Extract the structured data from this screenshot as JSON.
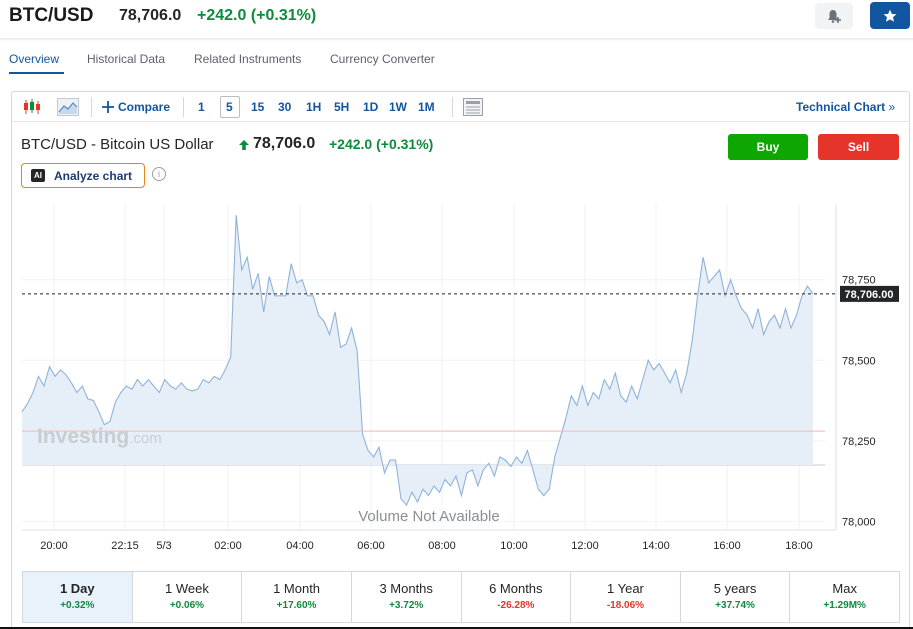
{
  "header": {
    "symbol": "BTC/USD",
    "price": "78,706.0",
    "change": "+242.0",
    "change_pct": "(+0.31%)"
  },
  "nav": {
    "tabs": [
      "Overview",
      "Historical Data",
      "Related Instruments",
      "Currency Converter"
    ],
    "active": "Overview"
  },
  "toolbar": {
    "compare_label": "Compare",
    "intervals": [
      "1",
      "5",
      "15",
      "30",
      "1H",
      "5H",
      "1D",
      "1W",
      "1M"
    ],
    "active_interval": "5",
    "technical_label": "Technical Chart",
    "technical_arrow": "»",
    "icons": [
      "candlestick-icon",
      "area-chart-icon",
      "plus-icon",
      "table-icon"
    ]
  },
  "chart_header": {
    "title": "BTC/USD - Bitcoin US Dollar",
    "price": "78,706.0",
    "change": "+242.0",
    "change_pct": "(+0.31%)",
    "buy_label": "Buy",
    "sell_label": "Sell",
    "analyze_badge": "AI",
    "analyze_label": "Analyze chart",
    "info_glyph": "i"
  },
  "chart_data": {
    "type": "area",
    "x_tick_labels": [
      "20:00",
      "22:15",
      "5/3",
      "02:00",
      "04:00",
      "06:00",
      "08:00",
      "10:00",
      "12:00",
      "14:00",
      "16:00",
      "18:00"
    ],
    "y_tick_labels": [
      "78,750",
      "78,500",
      "78,250",
      "78,000"
    ],
    "ylim": [
      77970,
      78985
    ],
    "current_price_label": "78,706.00",
    "current_price": 78706,
    "reference_price": 78280,
    "watermark": "Investing.com",
    "volume_note": "Volume Not Available",
    "series": [
      {
        "values": [
          78340,
          78365,
          78400,
          78450,
          78420,
          78480,
          78450,
          78470,
          78455,
          78430,
          78400,
          78420,
          78380,
          78375,
          78340,
          78300,
          78310,
          78370,
          78400,
          78420,
          78410,
          78440,
          78420,
          78440,
          78420,
          78400,
          78440,
          78420,
          78410,
          78430,
          78410,
          78405,
          78410,
          78440,
          78430,
          78450,
          78440,
          78470,
          78510,
          78950,
          78780,
          78820,
          78720,
          78770,
          78650,
          78760,
          78700,
          78700,
          78700,
          78800,
          78740,
          78750,
          78700,
          78700,
          78640,
          78620,
          78580,
          78650,
          78540,
          78550,
          78600,
          78530,
          78270,
          78220,
          78200,
          78230,
          78150,
          78190,
          78190,
          78070,
          78050,
          78090,
          78060,
          78100,
          78080,
          78110,
          78090,
          78130,
          78110,
          78140,
          78080,
          78150,
          78160,
          78110,
          78160,
          78180,
          78140,
          78200,
          78190,
          78170,
          78200,
          78180,
          78220,
          78160,
          78100,
          78080,
          78100,
          78200,
          78260,
          78320,
          78390,
          78360,
          78420,
          78360,
          78400,
          78380,
          78440,
          78410,
          78460,
          78390,
          78370,
          78420,
          78380,
          78440,
          78500,
          78470,
          78490,
          78460,
          78430,
          78470,
          78400,
          78460,
          78560,
          78700,
          78820,
          78740,
          78760,
          78780,
          78700,
          78750,
          78700,
          78660,
          78640,
          78600,
          78660,
          78580,
          78620,
          78640,
          78600,
          78660,
          78600,
          78640,
          78700,
          78730,
          78706
        ]
      }
    ]
  },
  "periods": [
    {
      "label": "1 Day",
      "change": "+0.32%",
      "dir": "up"
    },
    {
      "label": "1 Week",
      "change": "+0.06%",
      "dir": "up"
    },
    {
      "label": "1 Month",
      "change": "+17.60%",
      "dir": "up"
    },
    {
      "label": "3 Months",
      "change": "+3.72%",
      "dir": "up"
    },
    {
      "label": "6 Months",
      "change": "-26.28%",
      "dir": "down"
    },
    {
      "label": "1 Year",
      "change": "-18.06%",
      "dir": "down"
    },
    {
      "label": "5 years",
      "change": "+37.74%",
      "dir": "up"
    },
    {
      "label": "Max",
      "change": "+1.29M%",
      "dir": "up"
    }
  ],
  "selected_period": "1 Day",
  "colors": {
    "accent": "#1256a0",
    "positive": "#0e8a3d",
    "negative": "#e5342a",
    "buy": "#0ea600",
    "sell": "#e5342a",
    "line": "#8fb3d9",
    "fill": "#e6eff8",
    "reference_line": "#f4b8b8"
  }
}
